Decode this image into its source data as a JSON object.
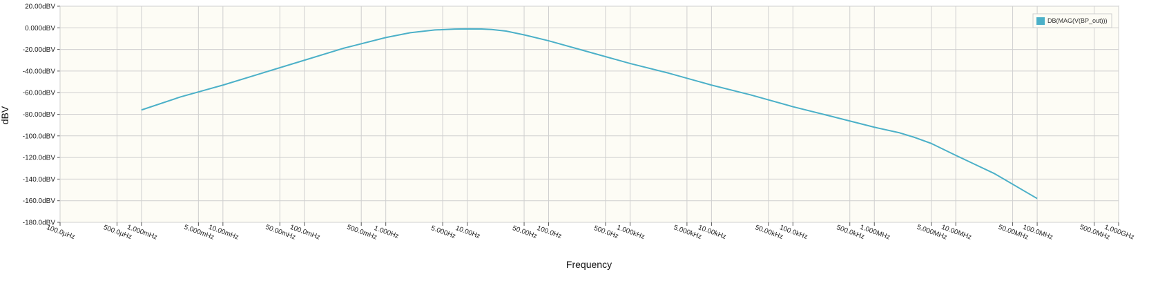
{
  "chart_data": {
    "type": "line",
    "title": "",
    "xlabel": "Frequency",
    "ylabel": "dBV",
    "x_scale": "log",
    "xlim": [
      0.0001,
      1000000000
    ],
    "ylim": [
      -180,
      20
    ],
    "grid": true,
    "legend_position": "top-right",
    "background_color": "#fdfcf5",
    "series_color": "#4bb0c8",
    "y_ticks": [
      20,
      0,
      -20,
      -40,
      -60,
      -80,
      -100,
      -120,
      -140,
      -160,
      -180
    ],
    "y_tick_labels": [
      "20.00dBV",
      "0.000dBV",
      "-20.00dBV",
      "-40.00dBV",
      "-60.00dBV",
      "-80.00dBV",
      "-100.0dBV",
      "-120.0dBV",
      "-140.0dBV",
      "-160.0dBV",
      "-180.0dBV"
    ],
    "x_ticks": [
      0.0001,
      0.0005,
      0.001,
      0.005,
      0.01,
      0.05,
      0.1,
      0.5,
      1,
      5,
      10,
      50,
      100,
      500,
      1000,
      5000,
      10000,
      50000,
      100000,
      500000,
      1000000,
      5000000,
      10000000,
      50000000,
      100000000,
      500000000,
      1000000000
    ],
    "x_tick_labels": [
      "100.0µHz",
      "500.0µHz",
      "1.000mHz",
      "5.000mHz",
      "10.00mHz",
      "50.00mHz",
      "100.0mHz",
      "500.0mHz",
      "1.000Hz",
      "5.000Hz",
      "10.00Hz",
      "50.00Hz",
      "100.0Hz",
      "500.0Hz",
      "1.000kHz",
      "5.000kHz",
      "10.00kHz",
      "50.00kHz",
      "100.0kHz",
      "500.0kHz",
      "1.000MHz",
      "5.000MHz",
      "10.00MHz",
      "50.00MHz",
      "100.0MHz",
      "500.0MHz",
      "1.000GHz"
    ],
    "series": [
      {
        "name": "DB(MAG(V(BP_out)))",
        "x": [
          0.001,
          0.003,
          0.01,
          0.03,
          0.1,
          0.3,
          1,
          2,
          4,
          7,
          10,
          15,
          20,
          30,
          50,
          100,
          300,
          1000,
          3000,
          10000,
          30000,
          100000,
          300000,
          1000000,
          2000000,
          3000000,
          5000000,
          10000000,
          30000000,
          100000000
        ],
        "y": [
          -76,
          -64,
          -53,
          -42,
          -30,
          -19,
          -9,
          -4.5,
          -2,
          -1.2,
          -1,
          -1.1,
          -1.6,
          -3,
          -6.5,
          -12,
          -22,
          -33,
          -42,
          -53,
          -62,
          -73,
          -82,
          -92,
          -97,
          -101,
          -107,
          -118,
          -135,
          -158
        ]
      }
    ]
  }
}
